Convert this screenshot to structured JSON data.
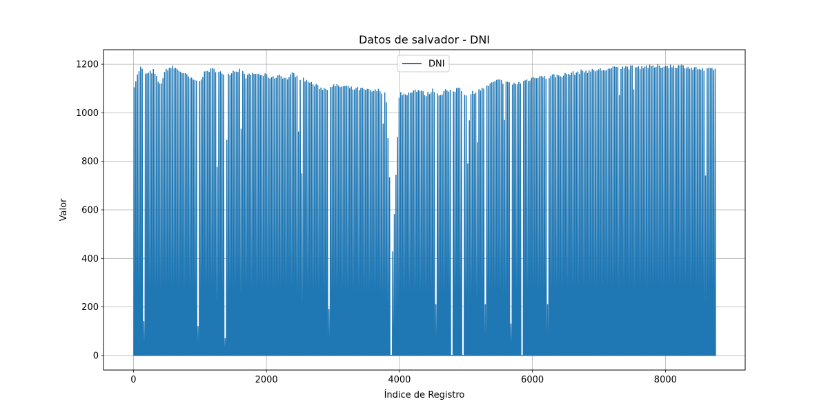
{
  "chart_data": {
    "type": "line",
    "title": "Datos de salvador - DNI",
    "xlabel": "Índice de Registro",
    "ylabel": "Valor",
    "xlim": [
      -450,
      9200
    ],
    "ylim": [
      -60,
      1260
    ],
    "x_ticks": [
      0,
      2000,
      4000,
      6000,
      8000
    ],
    "x_tick_labels": [
      "0",
      "2000",
      "4000",
      "6000",
      "8000"
    ],
    "y_ticks": [
      0,
      200,
      400,
      600,
      800,
      1000,
      1200
    ],
    "y_tick_labels": [
      "0",
      "200",
      "400",
      "600",
      "800",
      "1000",
      "1200"
    ],
    "grid": true,
    "legend_position": "top-center",
    "series": [
      {
        "name": "DNI",
        "color": "#1f77b4",
        "x_start": 0,
        "x_end": 8759,
        "baseline": 0,
        "period_hours": 24,
        "note_shape": "daily cycle: daytime peaks, night zeros",
        "daily_peaks": [
          {
            "x": 0,
            "y": 1110
          },
          {
            "x": 100,
            "y": 1195
          },
          {
            "x": 200,
            "y": 1165
          },
          {
            "x": 300,
            "y": 1180
          },
          {
            "x": 400,
            "y": 1120
          },
          {
            "x": 500,
            "y": 1190
          },
          {
            "x": 600,
            "y": 1195
          },
          {
            "x": 700,
            "y": 1180
          },
          {
            "x": 800,
            "y": 1160
          },
          {
            "x": 900,
            "y": 1140
          },
          {
            "x": 1000,
            "y": 1145
          },
          {
            "x": 1100,
            "y": 1180
          },
          {
            "x": 1200,
            "y": 1185
          },
          {
            "x": 1300,
            "y": 1180
          },
          {
            "x": 1400,
            "y": 1160
          },
          {
            "x": 1500,
            "y": 1180
          },
          {
            "x": 1600,
            "y": 1185
          },
          {
            "x": 1700,
            "y": 1155
          },
          {
            "x": 1800,
            "y": 1170
          },
          {
            "x": 1900,
            "y": 1165
          },
          {
            "x": 2000,
            "y": 1160
          },
          {
            "x": 2100,
            "y": 1150
          },
          {
            "x": 2200,
            "y": 1165
          },
          {
            "x": 2300,
            "y": 1145
          },
          {
            "x": 2400,
            "y": 1170
          },
          {
            "x": 2500,
            "y": 1150
          },
          {
            "x": 2600,
            "y": 1140
          },
          {
            "x": 2700,
            "y": 1125
          },
          {
            "x": 2800,
            "y": 1110
          },
          {
            "x": 2900,
            "y": 1105
          },
          {
            "x": 3000,
            "y": 1120
          },
          {
            "x": 3100,
            "y": 1115
          },
          {
            "x": 3200,
            "y": 1115
          },
          {
            "x": 3300,
            "y": 1105
          },
          {
            "x": 3400,
            "y": 1105
          },
          {
            "x": 3500,
            "y": 1100
          },
          {
            "x": 3600,
            "y": 1095
          },
          {
            "x": 3700,
            "y": 1100
          },
          {
            "x": 3800,
            "y": 1080
          },
          {
            "x": 3900,
            "y": 430
          },
          {
            "x": 4000,
            "y": 1090
          },
          {
            "x": 4100,
            "y": 1080
          },
          {
            "x": 4200,
            "y": 1100
          },
          {
            "x": 4300,
            "y": 1100
          },
          {
            "x": 4400,
            "y": 1080
          },
          {
            "x": 4500,
            "y": 1100
          },
          {
            "x": 4600,
            "y": 1080
          },
          {
            "x": 4700,
            "y": 1100
          },
          {
            "x": 4800,
            "y": 1090
          },
          {
            "x": 4900,
            "y": 1115
          },
          {
            "x": 5000,
            "y": 1075
          },
          {
            "x": 5100,
            "y": 1090
          },
          {
            "x": 5200,
            "y": 1100
          },
          {
            "x": 5300,
            "y": 1110
          },
          {
            "x": 5400,
            "y": 1130
          },
          {
            "x": 5500,
            "y": 1140
          },
          {
            "x": 5600,
            "y": 1130
          },
          {
            "x": 5700,
            "y": 1125
          },
          {
            "x": 5800,
            "y": 1130
          },
          {
            "x": 5900,
            "y": 1140
          },
          {
            "x": 6000,
            "y": 1150
          },
          {
            "x": 6100,
            "y": 1160
          },
          {
            "x": 6200,
            "y": 1150
          },
          {
            "x": 6300,
            "y": 1160
          },
          {
            "x": 6400,
            "y": 1160
          },
          {
            "x": 6500,
            "y": 1165
          },
          {
            "x": 6600,
            "y": 1170
          },
          {
            "x": 6700,
            "y": 1175
          },
          {
            "x": 6800,
            "y": 1180
          },
          {
            "x": 6900,
            "y": 1180
          },
          {
            "x": 7000,
            "y": 1185
          },
          {
            "x": 7100,
            "y": 1185
          },
          {
            "x": 7200,
            "y": 1190
          },
          {
            "x": 7300,
            "y": 1195
          },
          {
            "x": 7400,
            "y": 1195
          },
          {
            "x": 7500,
            "y": 1195
          },
          {
            "x": 7600,
            "y": 1195
          },
          {
            "x": 7700,
            "y": 1200
          },
          {
            "x": 7800,
            "y": 1195
          },
          {
            "x": 7900,
            "y": 1200
          },
          {
            "x": 8000,
            "y": 1200
          },
          {
            "x": 8100,
            "y": 1200
          },
          {
            "x": 8200,
            "y": 1200
          },
          {
            "x": 8300,
            "y": 1200
          },
          {
            "x": 8400,
            "y": 1190
          },
          {
            "x": 8500,
            "y": 1190
          },
          {
            "x": 8600,
            "y": 1180
          },
          {
            "x": 8700,
            "y": 1190
          },
          {
            "x": 8759,
            "y": 1190
          }
        ],
        "notable_low_days": [
          {
            "x": 150,
            "y": 140
          },
          {
            "x": 980,
            "y": 120
          },
          {
            "x": 1380,
            "y": 70
          },
          {
            "x": 2950,
            "y": 190
          },
          {
            "x": 3880,
            "y": 0
          },
          {
            "x": 4550,
            "y": 210
          },
          {
            "x": 4790,
            "y": 0
          },
          {
            "x": 4950,
            "y": 0
          },
          {
            "x": 5300,
            "y": 210
          },
          {
            "x": 5680,
            "y": 130
          },
          {
            "x": 5850,
            "y": 0
          },
          {
            "x": 6230,
            "y": 210
          },
          {
            "x": 8600,
            "y": 740
          }
        ]
      }
    ]
  }
}
